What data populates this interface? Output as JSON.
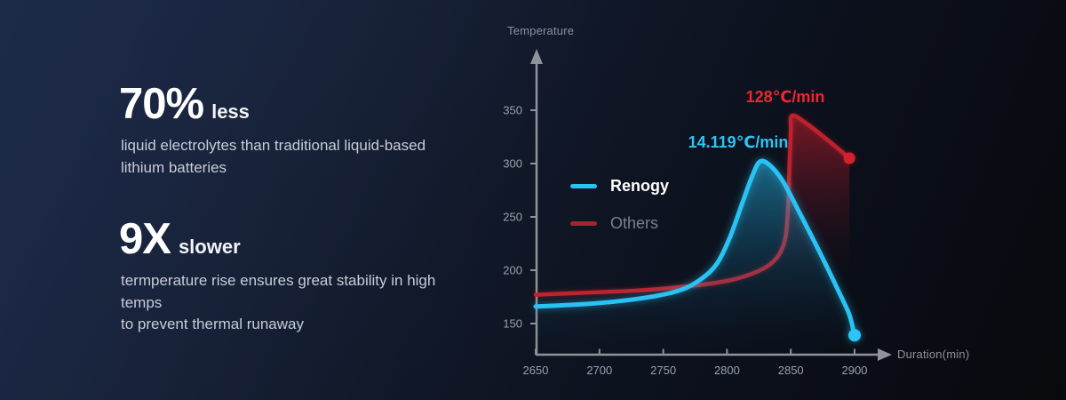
{
  "stats": [
    {
      "value": "70%",
      "qualifier": "less",
      "line1": "liquid electrolytes than traditional liquid-based",
      "line2": "lithium batteries"
    },
    {
      "value": "9X",
      "qualifier": "slower",
      "line1": "termperature rise ensures great stability in high temps",
      "line2": "to prevent thermal runaway"
    }
  ],
  "chart_data": {
    "type": "line",
    "title": "",
    "xlabel": "Duration(min)",
    "ylabel": "Temperature",
    "x_ticks": [
      2650,
      2700,
      2750,
      2800,
      2850,
      2900
    ],
    "y_ticks": [
      150,
      200,
      250,
      300,
      350
    ],
    "xlim": [
      2650,
      2930
    ],
    "ylim": [
      130,
      385
    ],
    "grid": false,
    "legend_position": "middle-left-inside",
    "axis_color": "#8f939a",
    "tick_label_color": "#9aa1ac",
    "series": [
      {
        "name": "Others",
        "color": "#bf202e",
        "label_color": "#ea2731",
        "rate_label": "128℃/min",
        "end_point": [
          2896,
          305
        ],
        "points": [
          [
            2650,
            177
          ],
          [
            2690,
            179
          ],
          [
            2730,
            181
          ],
          [
            2770,
            185
          ],
          [
            2800,
            190
          ],
          [
            2818,
            196
          ],
          [
            2832,
            204
          ],
          [
            2841,
            215
          ],
          [
            2846,
            232
          ],
          [
            2848,
            262
          ],
          [
            2849,
            300
          ],
          [
            2850,
            330
          ],
          [
            2851,
            345
          ],
          [
            2863,
            337
          ],
          [
            2880,
            321
          ],
          [
            2896,
            305
          ]
        ]
      },
      {
        "name": "Renogy",
        "color": "#29c2f2",
        "label_color": "#2cc4f4",
        "rate_label": "14.119℃/min",
        "end_point": [
          2900,
          139
        ],
        "points": [
          [
            2650,
            166
          ],
          [
            2685,
            168
          ],
          [
            2715,
            171
          ],
          [
            2745,
            176
          ],
          [
            2765,
            182
          ],
          [
            2780,
            192
          ],
          [
            2792,
            206
          ],
          [
            2802,
            230
          ],
          [
            2812,
            263
          ],
          [
            2820,
            289
          ],
          [
            2826,
            302
          ],
          [
            2834,
            298
          ],
          [
            2844,
            283
          ],
          [
            2856,
            256
          ],
          [
            2868,
            228
          ],
          [
            2880,
            199
          ],
          [
            2890,
            174
          ],
          [
            2896,
            158
          ],
          [
            2900,
            139
          ]
        ]
      }
    ]
  }
}
